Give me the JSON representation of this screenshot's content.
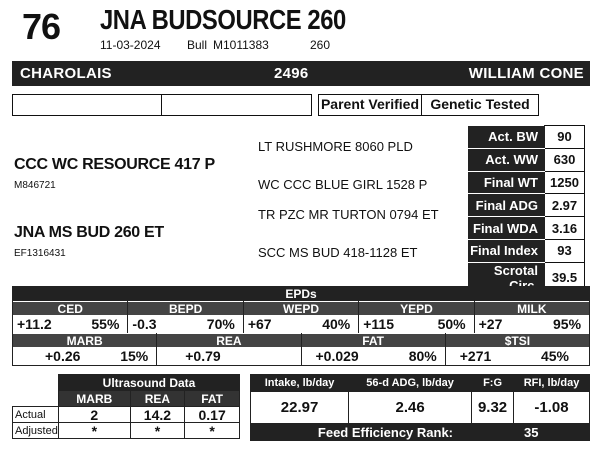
{
  "header": {
    "lot_number": "76",
    "animal_name": "JNA BUDSOURCE 260",
    "date": "11-03-2024",
    "sex": "Bull",
    "registration": "M1011383",
    "tattoo": "260"
  },
  "breed_bar": {
    "breed": "CHAROLAIS",
    "number": "2496",
    "consignor": "WILLIAM CONE"
  },
  "badges": {
    "parent_verified": "Parent Verified",
    "genetic_tested": "Genetic Tested"
  },
  "pedigree": {
    "sire": {
      "name": "CCC WC RESOURCE 417 P",
      "reg": "M846721"
    },
    "dam": {
      "name": "JNA MS BUD 260 ET",
      "reg": "EF1316431"
    },
    "sire_sire": "LT RUSHMORE 8060 PLD",
    "sire_dam": "WC CCC BLUE GIRL 1528 P",
    "dam_sire": "TR PZC MR TURTON 0794 ET",
    "dam_dam": "SCC MS BUD 418-1128 ET"
  },
  "performance": [
    {
      "label": "Act. BW",
      "value": "90"
    },
    {
      "label": "Act. WW",
      "value": "630"
    },
    {
      "label": "Final WT",
      "value": "1250"
    },
    {
      "label": "Final ADG",
      "value": "2.97"
    },
    {
      "label": "Final WDA",
      "value": "3.16"
    },
    {
      "label": "Final Index",
      "value": "93"
    },
    {
      "label": "Scrotal Circ.",
      "value": "39.5"
    }
  ],
  "epds": {
    "title": "EPDs",
    "row1": [
      {
        "name": "CED",
        "value": "+11.2",
        "pct": "55%"
      },
      {
        "name": "BEPD",
        "value": "-0.3",
        "pct": "70%"
      },
      {
        "name": "WEPD",
        "value": "+67",
        "pct": "40%"
      },
      {
        "name": "YEPD",
        "value": "+115",
        "pct": "50%"
      },
      {
        "name": "MILK",
        "value": "+27",
        "pct": "95%"
      }
    ],
    "row2": [
      {
        "name": "MARB",
        "value": "+0.26",
        "pct": "15%"
      },
      {
        "name": "REA",
        "value": "+0.79",
        "pct": ""
      },
      {
        "name": "FAT",
        "value": "+0.029",
        "pct": "80%"
      },
      {
        "name": "$TSI",
        "value": "+271",
        "pct": "45%"
      }
    ]
  },
  "ultrasound": {
    "title": "Ultrasound Data",
    "columns": [
      "MARB",
      "REA",
      "FAT"
    ],
    "rows": [
      {
        "label": "Actual",
        "values": [
          "2",
          "14.2",
          "0.17"
        ]
      },
      {
        "label": "Adjusted",
        "values": [
          "*",
          "*",
          "*"
        ]
      }
    ]
  },
  "feed": {
    "columns": [
      "Intake, lb/day",
      "56-d ADG, lb/day",
      "F:G",
      "RFI, lb/day"
    ],
    "values": [
      "22.97",
      "2.46",
      "9.32",
      "-1.08"
    ],
    "rank_label": "Feed Efficiency Rank:",
    "rank_value": "35"
  }
}
